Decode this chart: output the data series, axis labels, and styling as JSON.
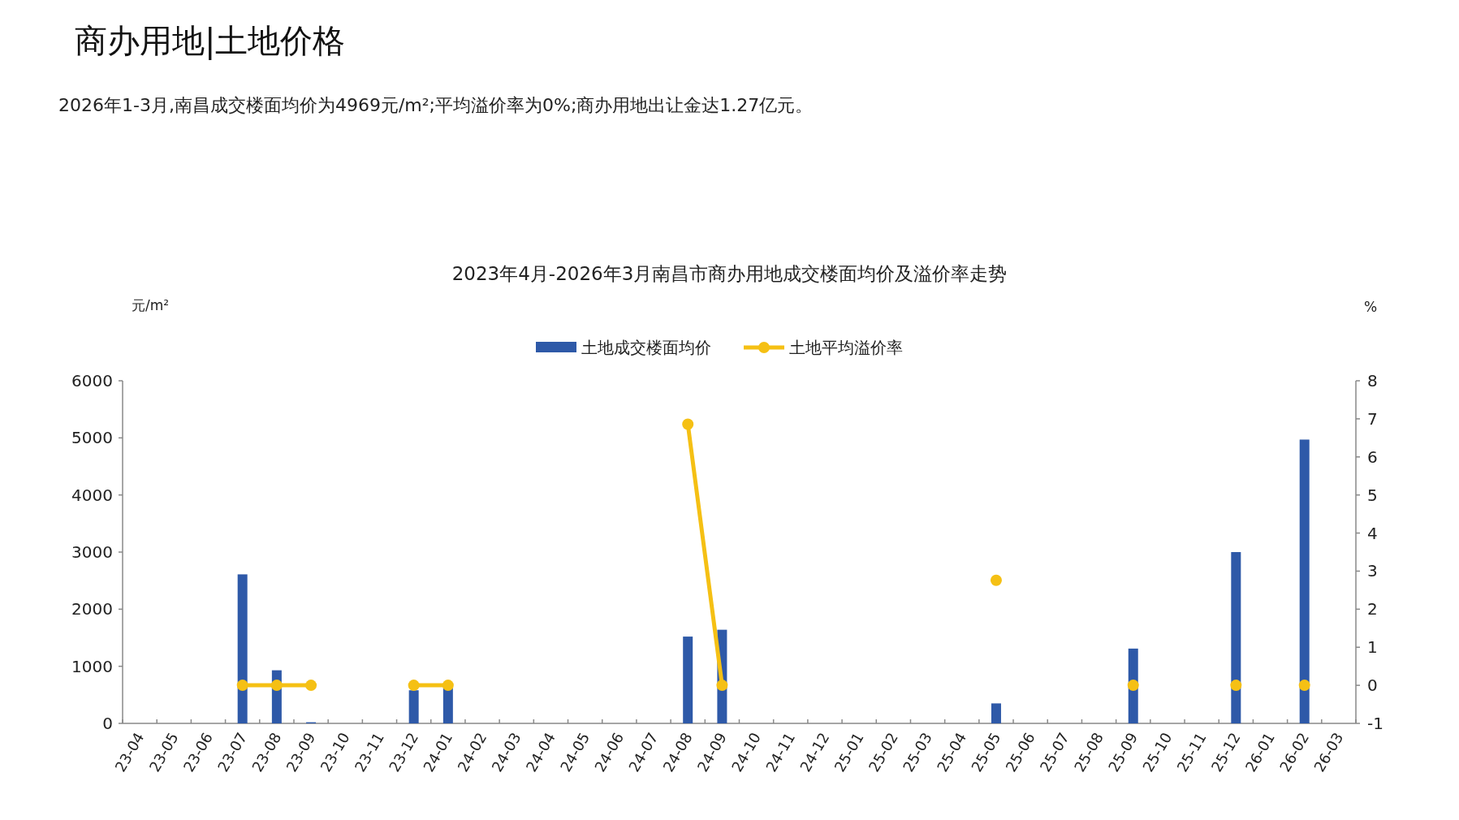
{
  "chart_data": {
    "type": "bar",
    "title": "2023年4月-2026年3月南昌市商办用地成交楼面均价及溢价率走势",
    "annotations": [
      "商办用地|土地价格",
      "2026年1-3月,南昌成交楼面均价为4969元/m²;平均溢价率为0%;商办用地出让金达1.27亿元。"
    ],
    "ylabel": "元/m²",
    "y2label": "%",
    "categories": [
      "23-04",
      "23-05",
      "23-06",
      "23-07",
      "23-08",
      "23-09",
      "23-10",
      "23-11",
      "23-12",
      "24-01",
      "24-02",
      "24-03",
      "24-04",
      "24-05",
      "24-06",
      "24-07",
      "24-08",
      "24-09",
      "24-10",
      "24-11",
      "24-12",
      "25-01",
      "25-02",
      "25-03",
      "25-04",
      "25-05",
      "25-06",
      "25-07",
      "25-08",
      "25-09",
      "25-10",
      "25-11",
      "25-12",
      "26-01",
      "26-02",
      "26-03"
    ],
    "series": [
      {
        "name": "土地成交楼面均价",
        "color": "#2e59a8",
        "values": [
          null,
          null,
          null,
          2610,
          930,
          20,
          null,
          null,
          580,
          620,
          null,
          null,
          null,
          null,
          null,
          null,
          1520,
          1640,
          null,
          null,
          null,
          null,
          null,
          null,
          null,
          350,
          null,
          null,
          null,
          1310,
          null,
          null,
          3000,
          null,
          4970,
          null
        ]
      },
      {
        "name": "土地平均溢价率",
        "type": "line",
        "axis": "y2",
        "color": "#f5c014",
        "marker": "circle",
        "values": [
          null,
          null,
          null,
          0,
          0,
          0,
          null,
          null,
          0,
          0,
          null,
          null,
          null,
          null,
          null,
          null,
          6.86,
          0,
          null,
          null,
          null,
          null,
          null,
          null,
          null,
          2.76,
          null,
          null,
          null,
          0,
          null,
          null,
          0,
          null,
          0,
          null
        ]
      }
    ],
    "ylim": [
      0,
      6000
    ],
    "yticks": [
      0,
      1000,
      2000,
      3000,
      4000,
      5000,
      6000
    ],
    "y2lim": [
      -1,
      8
    ],
    "y2ticks": [
      -1,
      0,
      1,
      2,
      3,
      4,
      5,
      6,
      7,
      8
    ],
    "grid": false,
    "legend": "top"
  }
}
